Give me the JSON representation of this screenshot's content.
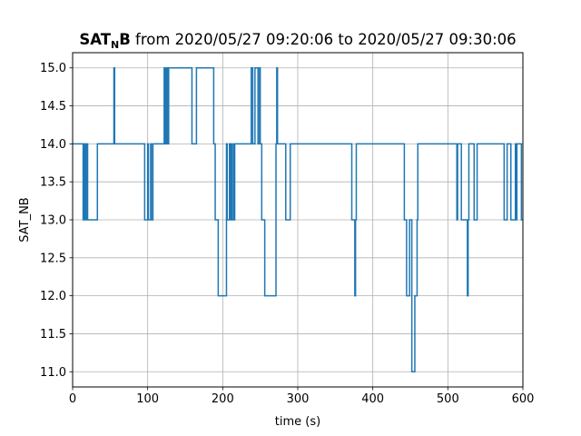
{
  "chart_data": {
    "type": "line",
    "line_style": "step",
    "title": {
      "main": "SAT",
      "subscript": "N",
      "main_tail": "B",
      "rest": " from 2020/05/27 09:20:06 to 2020/05/27 09:30:06"
    },
    "xlabel": "time (s)",
    "ylabel": "SAT_NB",
    "xlim": [
      0,
      600
    ],
    "ylim": [
      10.8,
      15.2
    ],
    "xticks": [
      0,
      100,
      200,
      300,
      400,
      500,
      600
    ],
    "xtick_labels": [
      "0",
      "100",
      "200",
      "300",
      "400",
      "500",
      "600"
    ],
    "yticks": [
      11.0,
      11.5,
      12.0,
      12.5,
      13.0,
      13.5,
      14.0,
      14.5,
      15.0
    ],
    "ytick_labels": [
      "11.0",
      "11.5",
      "12.0",
      "12.5",
      "13.0",
      "13.5",
      "14.0",
      "14.5",
      "15.0"
    ],
    "grid": true,
    "series_color": "#1f77b4",
    "series": [
      {
        "name": "",
        "x": [
          0,
          14,
          15,
          16,
          17,
          18,
          19,
          20,
          33,
          55,
          56,
          96,
          100,
          101,
          104,
          105,
          107,
          122,
          123,
          124,
          125,
          126,
          127,
          128,
          159,
          165,
          188,
          190,
          194,
          197,
          205,
          206,
          209,
          210,
          211,
          212,
          214,
          215,
          216,
          218,
          238,
          240,
          243,
          247,
          249,
          250,
          252,
          255,
          256,
          260,
          271,
          272,
          273,
          276,
          284,
          290,
          372,
          376,
          377,
          378,
          380,
          442,
          445,
          449,
          452,
          455,
          456,
          459,
          460,
          512,
          513,
          518,
          526,
          527,
          528,
          535,
          539,
          575,
          579,
          580,
          584,
          590,
          591,
          592,
          594,
          598,
          600
        ],
        "y": [
          14,
          13,
          14,
          13,
          14,
          13,
          14,
          13,
          14,
          15,
          14,
          13,
          14,
          13,
          14,
          13,
          14,
          15,
          14,
          15,
          14,
          15,
          14,
          15,
          14,
          15,
          14,
          13,
          12,
          12,
          14,
          13,
          14,
          13,
          14,
          13,
          14,
          13,
          14,
          14,
          15,
          14,
          15,
          14,
          15,
          14,
          13,
          13,
          12,
          12,
          14,
          15,
          14,
          14,
          13,
          14,
          13,
          12,
          13,
          14,
          14,
          13,
          12,
          13,
          11,
          11,
          12,
          13,
          14,
          13,
          14,
          13,
          12,
          13,
          14,
          13,
          14,
          13,
          14,
          14,
          13,
          14,
          13,
          14,
          14,
          13,
          13
        ]
      }
    ]
  }
}
